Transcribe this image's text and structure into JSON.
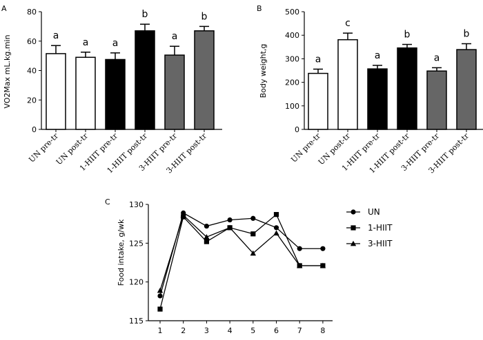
{
  "chart_data": [
    {
      "panel": "A",
      "type": "bar",
      "ylabel": "VO2Max  mL.kg.min",
      "ylim": [
        0,
        80
      ],
      "yticks": [
        0,
        20,
        40,
        60,
        80
      ],
      "categories": [
        "UN pre-tr",
        "UN post-tr",
        "1-HIIT pre-tr",
        "1-HIIT post-tr",
        "3-HIIT pre-tr",
        "3-HIIT post-tr"
      ],
      "values": [
        51.5,
        49.0,
        47.5,
        67.0,
        50.5,
        67.0
      ],
      "errors": [
        5.5,
        3.5,
        4.5,
        4.5,
        6.0,
        3.0
      ],
      "fills": [
        "#ffffff",
        "#ffffff",
        "#000000",
        "#000000",
        "#666666",
        "#666666"
      ],
      "sig_letters": [
        "a",
        "a",
        "a",
        "b",
        "a",
        "b"
      ]
    },
    {
      "panel": "B",
      "type": "bar",
      "ylabel": "Body weight,g",
      "ylim": [
        0,
        500
      ],
      "yticks": [
        0,
        100,
        200,
        300,
        400,
        500
      ],
      "categories": [
        "UN pre-tr",
        "UN post-tr",
        "1-HIIT pre-tr",
        "1-HIIT post-tr",
        "3-HIIT pre-tr",
        "3-HIIT post-tr"
      ],
      "values": [
        238,
        381,
        257,
        346,
        248,
        339
      ],
      "errors": [
        18,
        28,
        15,
        15,
        14,
        25
      ],
      "fills": [
        "#ffffff",
        "#ffffff",
        "#000000",
        "#000000",
        "#666666",
        "#666666"
      ],
      "sig_letters": [
        "a",
        "c",
        "a",
        "b",
        "a",
        "b"
      ]
    },
    {
      "panel": "C",
      "type": "line",
      "ylabel": "Food intake, g/wk",
      "ylim": [
        115,
        130
      ],
      "yticks": [
        115,
        120,
        125,
        130
      ],
      "x": [
        1,
        2,
        3,
        4,
        5,
        6,
        7,
        8
      ],
      "series": [
        {
          "name": "UN",
          "marker": "circle",
          "values": [
            118.2,
            128.9,
            127.2,
            128.0,
            128.2,
            127.0,
            124.3,
            124.3
          ]
        },
        {
          "name": "1-HIIT",
          "marker": "square",
          "values": [
            116.5,
            128.4,
            125.2,
            127.0,
            126.2,
            128.7,
            122.1,
            122.1
          ]
        },
        {
          "name": "3-HIIT",
          "marker": "triangle",
          "values": [
            118.9,
            128.6,
            125.8,
            127.0,
            123.7,
            126.3,
            122.1,
            122.1
          ]
        }
      ],
      "legend_position": "right"
    }
  ]
}
